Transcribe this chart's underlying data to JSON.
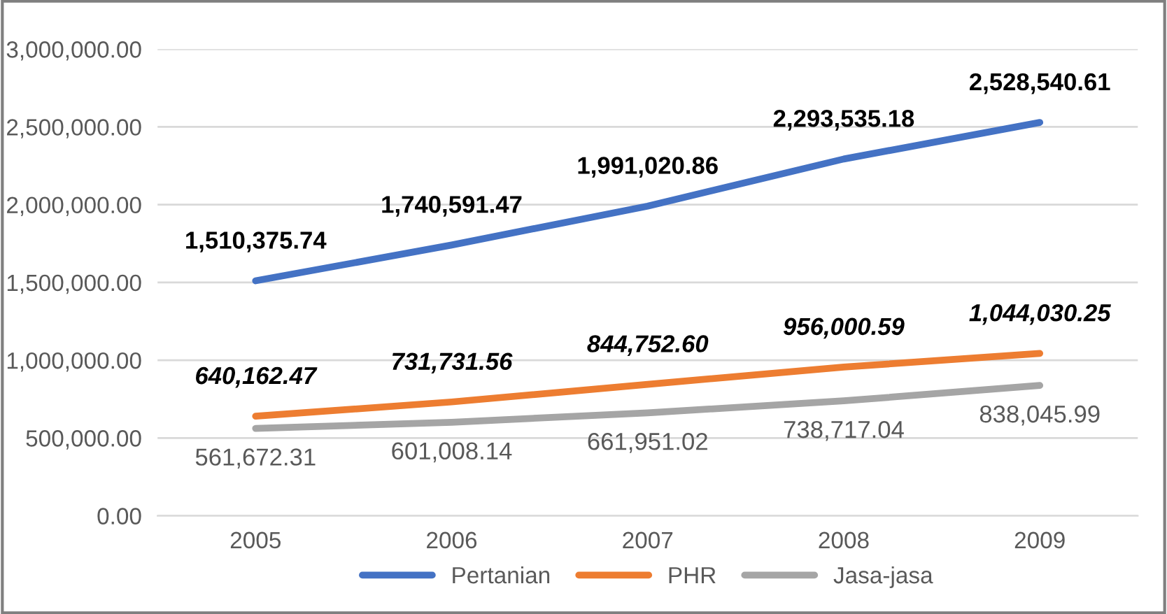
{
  "chart_data": {
    "type": "line",
    "categories": [
      "2005",
      "2006",
      "2007",
      "2008",
      "2009"
    ],
    "series": [
      {
        "name": "Pertanian",
        "color": "#4472c4",
        "values": [
          1510375.74,
          1740591.47,
          1991020.86,
          2293535.18,
          2528540.61
        ],
        "value_labels": [
          "1,510,375.74",
          "1,740,591.47",
          "1,991,020.86",
          "2,293,535.18",
          "2,528,540.61"
        ]
      },
      {
        "name": "PHR",
        "color": "#ed7d31",
        "values": [
          640162.47,
          731731.56,
          844752.6,
          956000.59,
          1044030.25
        ],
        "value_labels": [
          "640,162.47",
          "731,731.56",
          "844,752.60",
          "956,000.59",
          "1,044,030.25"
        ]
      },
      {
        "name": "Jasa-jasa",
        "color": "#a5a5a5",
        "values": [
          561672.31,
          601008.14,
          661951.02,
          738717.04,
          838045.99
        ],
        "value_labels": [
          "561,672.31",
          "601,008.14",
          "661,951.02",
          "738,717.04",
          "838,045.99"
        ]
      }
    ],
    "ylim": [
      0,
      3000000
    ],
    "yticks": [
      {
        "value": 0,
        "label": "0.00"
      },
      {
        "value": 500000,
        "label": "500,000.00"
      },
      {
        "value": 1000000,
        "label": "1,000,000.00"
      },
      {
        "value": 1500000,
        "label": "1,500,000.00"
      },
      {
        "value": 2000000,
        "label": "2,000,000.00"
      },
      {
        "value": 2500000,
        "label": "2,500,000.00"
      },
      {
        "value": 3000000,
        "label": "3,000,000.00"
      }
    ],
    "grid": "y",
    "legend": "bottom",
    "marker": "none",
    "line_style": "solid"
  }
}
